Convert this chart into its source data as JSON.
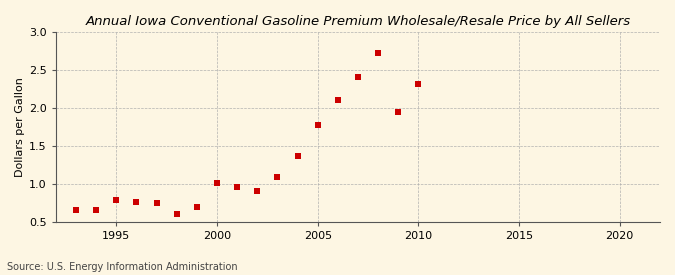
{
  "title": "Annual Iowa Conventional Gasoline Premium Wholesale/Resale Price by All Sellers",
  "ylabel": "Dollars per Gallon",
  "source": "Source: U.S. Energy Information Administration",
  "background_color": "#fdf6e3",
  "marker_color": "#cc0000",
  "years": [
    1993,
    1994,
    1995,
    1996,
    1997,
    1998,
    1999,
    2000,
    2001,
    2002,
    2003,
    2004,
    2005,
    2006,
    2007,
    2008,
    2009,
    2010
  ],
  "values": [
    0.66,
    0.65,
    0.79,
    0.76,
    0.75,
    0.6,
    0.69,
    1.01,
    0.96,
    0.9,
    1.09,
    1.36,
    1.78,
    2.1,
    2.4,
    2.72,
    1.95,
    2.31
  ],
  "xlim": [
    1992,
    2022
  ],
  "ylim": [
    0.5,
    3.0
  ],
  "xticks": [
    1995,
    2000,
    2005,
    2010,
    2015,
    2020
  ],
  "yticks": [
    0.5,
    1.0,
    1.5,
    2.0,
    2.5,
    3.0
  ],
  "title_fontsize": 9.5,
  "label_fontsize": 8,
  "tick_fontsize": 8,
  "source_fontsize": 7
}
